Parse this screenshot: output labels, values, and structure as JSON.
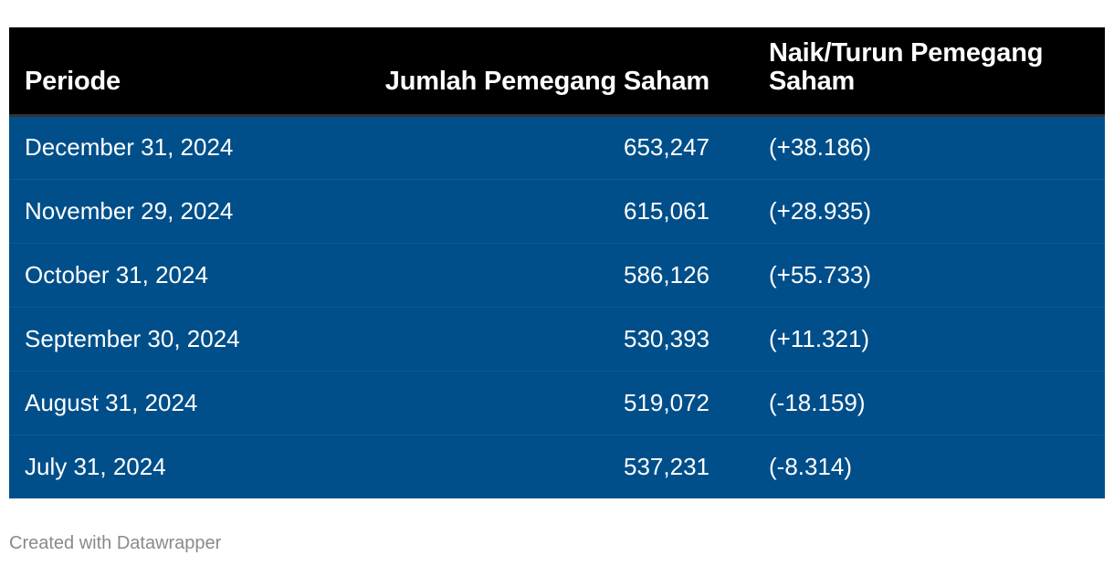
{
  "chart_data": {
    "type": "table",
    "columns": [
      "Periode",
      "Jumlah Pemegang Saham",
      "Naik/Turun Pemegang Saham"
    ],
    "rows": [
      [
        "December 31, 2024",
        "653,247",
        "(+38.186)"
      ],
      [
        "November 29, 2024",
        "615,061",
        "(+28.935)"
      ],
      [
        "October 31, 2024",
        "586,126",
        "(+55.733)"
      ],
      [
        "September 30, 2024",
        "530,393",
        "(+11.321)"
      ],
      [
        "August 31, 2024",
        "519,072",
        "(-18.159)"
      ],
      [
        "July 31, 2024",
        "537,231",
        "(-8.314)"
      ]
    ]
  },
  "footer": {
    "credit": "Created with Datawrapper"
  },
  "colors": {
    "header_bg": "#000000",
    "row_bg": "#004f8a",
    "text": "#ffffff",
    "footer_text": "#8a8a8a"
  }
}
